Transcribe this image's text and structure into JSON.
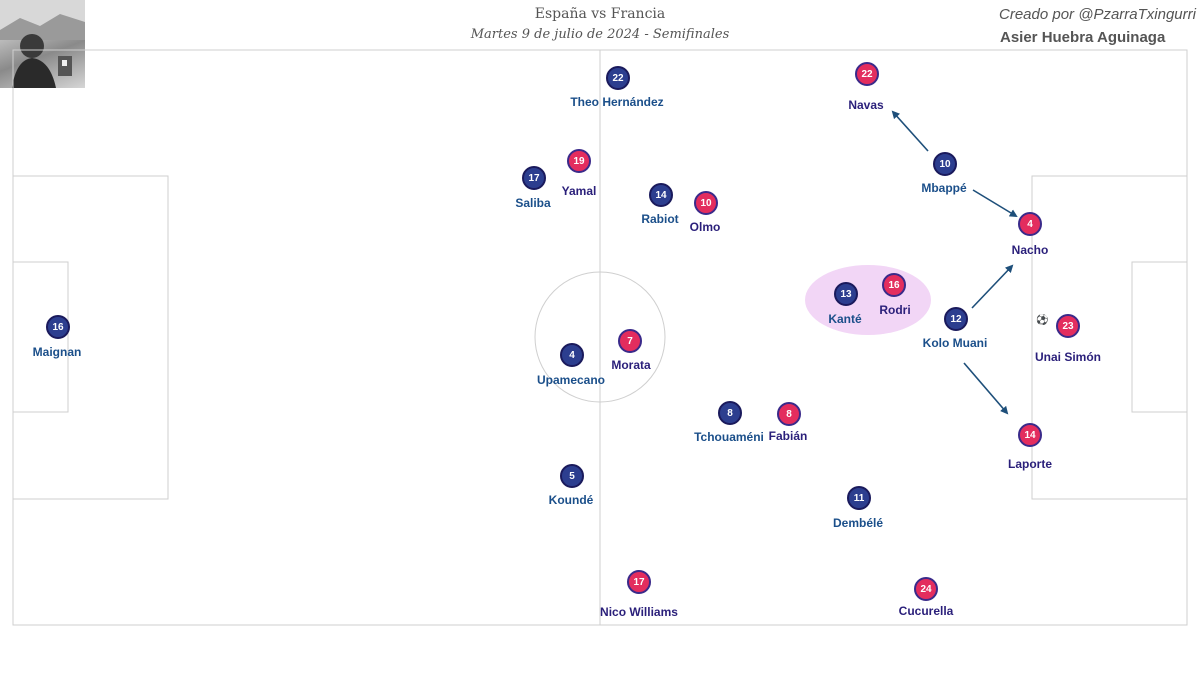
{
  "header": {
    "title": "España vs Francia",
    "subtitle": "Martes 9 de julio de 2024 - Semifinales",
    "credit": "Creado por @PzarraTxingurri",
    "author": "Asier Huebra Aguinaga"
  },
  "colors": {
    "france": "#2c3e8f",
    "spain": "#e32d5e",
    "highlight": "#f0d4f5",
    "arrow": "#1e4f7a",
    "pitch_lines": "#cccccc"
  },
  "icons": [
    "author-photo",
    "ball-icon"
  ],
  "france_players": [
    {
      "number": "16",
      "name": "Maignan"
    },
    {
      "number": "22",
      "name": "Theo Hernández"
    },
    {
      "number": "17",
      "name": "Saliba"
    },
    {
      "number": "4",
      "name": "Upamecano"
    },
    {
      "number": "5",
      "name": "Koundé"
    },
    {
      "number": "14",
      "name": "Rabiot"
    },
    {
      "number": "8",
      "name": "Tchouaméni"
    },
    {
      "number": "10",
      "name": "Mbappé"
    },
    {
      "number": "13",
      "name": "Kanté"
    },
    {
      "number": "12",
      "name": "Kolo Muani"
    },
    {
      "number": "11",
      "name": "Dembélé"
    }
  ],
  "spain_players": [
    {
      "number": "22",
      "name": "Navas"
    },
    {
      "number": "19",
      "name": "Yamal"
    },
    {
      "number": "10",
      "name": "Olmo"
    },
    {
      "number": "7",
      "name": "Morata"
    },
    {
      "number": "8",
      "name": "Fabián"
    },
    {
      "number": "17",
      "name": "Nico Williams"
    },
    {
      "number": "24",
      "name": "Cucurella"
    },
    {
      "number": "16",
      "name": "Rodri"
    },
    {
      "number": "4",
      "name": "Nacho"
    },
    {
      "number": "23",
      "name": "Unai Simón"
    },
    {
      "number": "14",
      "name": "Laporte"
    }
  ]
}
